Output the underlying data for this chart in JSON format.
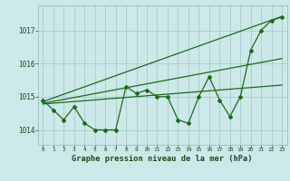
{
  "bg_color": "#cce8e8",
  "grid_color": "#aacccc",
  "line_color": "#1a6b1a",
  "xlabel": "Graphe pression niveau de la mer (hPa)",
  "ylim": [
    1013.55,
    1017.75
  ],
  "xlim": [
    -0.5,
    23.5
  ],
  "yticks": [
    1014,
    1015,
    1016,
    1017
  ],
  "xticks": [
    0,
    1,
    2,
    3,
    4,
    5,
    6,
    7,
    8,
    9,
    10,
    11,
    12,
    13,
    14,
    15,
    16,
    17,
    18,
    19,
    20,
    21,
    22,
    23
  ],
  "main_x": [
    0,
    1,
    2,
    3,
    4,
    5,
    6,
    7,
    8,
    9,
    10,
    11,
    12,
    13,
    14,
    15,
    16,
    17,
    18,
    19,
    20,
    21,
    22,
    23
  ],
  "main_y": [
    1014.9,
    1014.6,
    1014.3,
    1014.7,
    1014.2,
    1014.0,
    1014.0,
    1014.0,
    1015.3,
    1015.1,
    1015.2,
    1015.0,
    1015.0,
    1014.3,
    1014.2,
    1015.0,
    1015.6,
    1014.9,
    1014.4,
    1015.0,
    1016.4,
    1017.0,
    1017.3,
    1017.4
  ],
  "trend1_x": [
    0,
    23
  ],
  "trend1_y": [
    1014.85,
    1017.42
  ],
  "trend2_x": [
    0,
    23
  ],
  "trend2_y": [
    1014.8,
    1016.15
  ],
  "trend3_x": [
    0,
    23
  ],
  "trend3_y": [
    1014.78,
    1015.35
  ]
}
